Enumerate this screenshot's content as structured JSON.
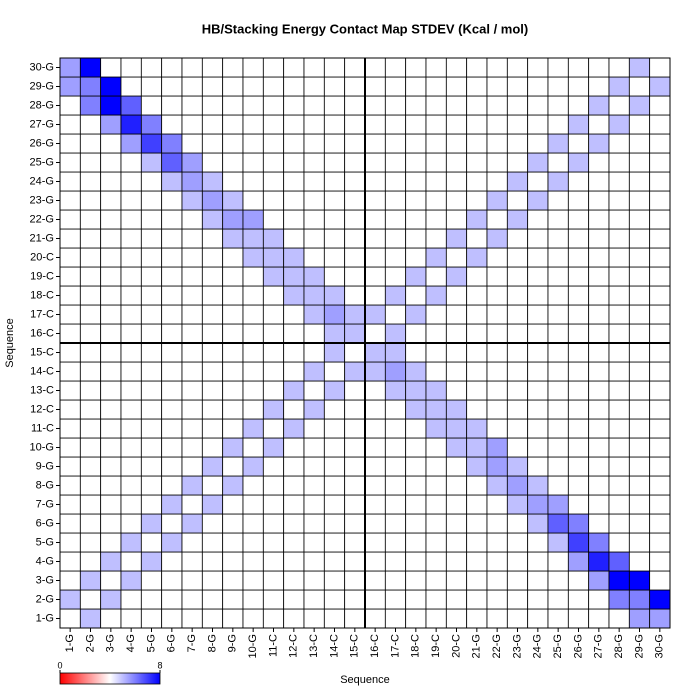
{
  "chart_data": {
    "type": "heatmap",
    "title": "HB/Stacking Energy Contact Map STDEV (Kcal / mol)",
    "x_label": "Sequence",
    "y_label": "Sequence",
    "categories": [
      "1-G",
      "2-G",
      "3-G",
      "4-G",
      "5-G",
      "6-G",
      "7-G",
      "8-G",
      "9-G",
      "10-G",
      "11-C",
      "12-C",
      "13-C",
      "14-C",
      "15-C",
      "16-C",
      "17-C",
      "18-C",
      "19-C",
      "20-C",
      "21-G",
      "22-G",
      "23-G",
      "24-G",
      "25-G",
      "26-G",
      "27-G",
      "28-G",
      "29-G",
      "30-G"
    ],
    "values": [
      [
        4,
        5,
        4,
        4,
        4,
        4,
        4,
        4,
        4,
        4,
        4,
        4,
        4,
        4,
        4,
        4,
        4,
        4,
        4,
        4,
        4,
        4,
        4,
        4,
        4,
        4,
        4,
        4,
        5.5,
        5.5
      ],
      [
        5,
        4,
        5,
        4,
        4,
        4,
        4,
        4,
        4,
        4,
        4,
        4,
        4,
        4,
        4,
        4,
        4,
        4,
        4,
        4,
        4,
        4,
        4,
        4,
        4,
        4,
        4,
        6,
        6,
        8
      ],
      [
        4,
        5,
        4,
        5,
        4,
        4,
        4,
        4,
        4,
        4,
        4,
        4,
        4,
        4,
        4,
        4,
        4,
        4,
        4,
        4,
        4,
        4,
        4,
        4,
        4,
        4,
        5.5,
        8,
        8,
        4
      ],
      [
        4,
        4,
        5,
        4,
        5,
        4,
        4,
        4,
        4,
        4,
        4,
        4,
        4,
        4,
        4,
        4,
        4,
        4,
        4,
        4,
        4,
        4,
        4,
        4,
        4,
        5.5,
        7.5,
        6.5,
        4,
        4
      ],
      [
        4,
        4,
        4,
        5,
        4,
        5,
        4,
        4,
        4,
        4,
        4,
        4,
        4,
        4,
        4,
        4,
        4,
        4,
        4,
        4,
        4,
        4,
        4,
        4,
        5,
        7,
        6,
        4,
        4,
        4
      ],
      [
        4,
        4,
        4,
        4,
        5,
        4,
        5,
        4,
        4,
        4,
        4,
        4,
        4,
        4,
        4,
        4,
        4,
        4,
        4,
        4,
        4,
        4,
        4,
        5,
        6.5,
        6,
        4,
        4,
        4,
        4
      ],
      [
        4,
        4,
        4,
        4,
        4,
        5,
        4,
        5,
        4,
        4,
        4,
        4,
        4,
        4,
        4,
        4,
        4,
        4,
        4,
        4,
        4,
        4,
        5,
        5.5,
        5.5,
        4,
        4,
        4,
        4,
        4
      ],
      [
        4,
        4,
        4,
        4,
        4,
        4,
        5,
        4,
        5,
        4,
        4,
        4,
        4,
        4,
        4,
        4,
        4,
        4,
        4,
        4,
        4,
        5,
        5.5,
        5,
        4,
        4,
        4,
        4,
        4,
        4
      ],
      [
        4,
        4,
        4,
        4,
        4,
        4,
        4,
        5,
        4,
        5,
        4,
        4,
        4,
        4,
        4,
        4,
        4,
        4,
        4,
        4,
        5,
        5.5,
        5,
        4,
        4,
        4,
        4,
        4,
        4,
        4
      ],
      [
        4,
        4,
        4,
        4,
        4,
        4,
        4,
        4,
        5,
        4,
        5,
        4,
        4,
        4,
        4,
        4,
        4,
        4,
        4,
        5,
        5,
        5.5,
        4,
        4,
        4,
        4,
        4,
        4,
        4,
        4
      ],
      [
        4,
        4,
        4,
        4,
        4,
        4,
        4,
        4,
        4,
        5,
        4,
        5,
        4,
        4,
        4,
        4,
        4,
        4,
        5,
        5,
        5,
        4,
        4,
        4,
        4,
        4,
        4,
        4,
        4,
        4
      ],
      [
        4,
        4,
        4,
        4,
        4,
        4,
        4,
        4,
        4,
        4,
        5,
        4,
        5,
        4,
        4,
        4,
        4,
        5,
        5,
        5,
        4,
        4,
        4,
        4,
        4,
        4,
        4,
        4,
        4,
        4
      ],
      [
        4,
        4,
        4,
        4,
        4,
        4,
        4,
        4,
        4,
        4,
        4,
        5,
        4,
        5,
        4,
        4,
        5,
        5,
        5,
        4,
        4,
        4,
        4,
        4,
        4,
        4,
        4,
        4,
        4,
        4
      ],
      [
        4,
        4,
        4,
        4,
        4,
        4,
        4,
        4,
        4,
        4,
        4,
        4,
        5,
        4,
        5,
        5,
        5.5,
        5,
        4,
        4,
        4,
        4,
        4,
        4,
        4,
        4,
        4,
        4,
        4,
        4
      ],
      [
        4,
        4,
        4,
        4,
        4,
        4,
        4,
        4,
        4,
        4,
        4,
        4,
        4,
        5,
        4,
        5,
        5,
        4,
        4,
        4,
        4,
        4,
        4,
        4,
        4,
        4,
        4,
        4,
        4,
        4
      ],
      [
        4,
        4,
        4,
        4,
        4,
        4,
        4,
        4,
        4,
        4,
        4,
        4,
        4,
        5,
        5,
        4,
        5,
        4,
        4,
        4,
        4,
        4,
        4,
        4,
        4,
        4,
        4,
        4,
        4,
        4
      ],
      [
        4,
        4,
        4,
        4,
        4,
        4,
        4,
        4,
        4,
        4,
        4,
        4,
        5,
        5.5,
        5,
        5,
        4,
        5,
        4,
        4,
        4,
        4,
        4,
        4,
        4,
        4,
        4,
        4,
        4,
        4
      ],
      [
        4,
        4,
        4,
        4,
        4,
        4,
        4,
        4,
        4,
        4,
        4,
        5,
        5,
        5,
        4,
        4,
        5,
        4,
        5,
        4,
        4,
        4,
        4,
        4,
        4,
        4,
        4,
        4,
        4,
        4
      ],
      [
        4,
        4,
        4,
        4,
        4,
        4,
        4,
        4,
        4,
        4,
        5,
        5,
        5,
        4,
        4,
        4,
        4,
        5,
        4,
        5,
        4,
        4,
        4,
        4,
        4,
        4,
        4,
        4,
        4,
        4
      ],
      [
        4,
        4,
        4,
        4,
        4,
        4,
        4,
        4,
        4,
        5,
        5,
        5,
        4,
        4,
        4,
        4,
        4,
        4,
        5,
        4,
        5,
        4,
        4,
        4,
        4,
        4,
        4,
        4,
        4,
        4
      ],
      [
        4,
        4,
        4,
        4,
        4,
        4,
        4,
        4,
        5,
        5,
        5,
        4,
        4,
        4,
        4,
        4,
        4,
        4,
        4,
        5,
        4,
        5,
        4,
        4,
        4,
        4,
        4,
        4,
        4,
        4
      ],
      [
        4,
        4,
        4,
        4,
        4,
        4,
        4,
        5,
        5.5,
        5.5,
        4,
        4,
        4,
        4,
        4,
        4,
        4,
        4,
        4,
        4,
        5,
        4,
        5,
        4,
        4,
        4,
        4,
        4,
        4,
        4
      ],
      [
        4,
        4,
        4,
        4,
        4,
        4,
        5,
        5.5,
        5,
        4,
        4,
        4,
        4,
        4,
        4,
        4,
        4,
        4,
        4,
        4,
        4,
        5,
        4,
        5,
        4,
        4,
        4,
        4,
        4,
        4
      ],
      [
        4,
        4,
        4,
        4,
        4,
        5,
        5.5,
        5,
        4,
        4,
        4,
        4,
        4,
        4,
        4,
        4,
        4,
        4,
        4,
        4,
        4,
        4,
        5,
        4,
        5,
        4,
        4,
        4,
        4,
        4
      ],
      [
        4,
        4,
        4,
        4,
        5,
        6.5,
        5.5,
        4,
        4,
        4,
        4,
        4,
        4,
        4,
        4,
        4,
        4,
        4,
        4,
        4,
        4,
        4,
        4,
        5,
        4,
        5,
        4,
        4,
        4,
        4
      ],
      [
        4,
        4,
        4,
        5.5,
        7,
        6,
        4,
        4,
        4,
        4,
        4,
        4,
        4,
        4,
        4,
        4,
        4,
        4,
        4,
        4,
        4,
        4,
        4,
        4,
        5,
        4,
        5,
        4,
        4,
        4
      ],
      [
        4,
        4,
        5.5,
        7.5,
        6,
        4,
        4,
        4,
        4,
        4,
        4,
        4,
        4,
        4,
        4,
        4,
        4,
        4,
        4,
        4,
        4,
        4,
        4,
        4,
        4,
        5,
        4,
        5,
        4,
        4
      ],
      [
        4,
        6,
        8,
        6.5,
        4,
        4,
        4,
        4,
        4,
        4,
        4,
        4,
        4,
        4,
        4,
        4,
        4,
        4,
        4,
        4,
        4,
        4,
        4,
        4,
        4,
        4,
        5,
        4,
        5,
        4
      ],
      [
        5.5,
        6,
        8,
        4,
        4,
        4,
        4,
        4,
        4,
        4,
        4,
        4,
        4,
        4,
        4,
        4,
        4,
        4,
        4,
        4,
        4,
        4,
        4,
        4,
        4,
        4,
        4,
        5,
        4,
        5
      ],
      [
        5.5,
        8,
        4,
        4,
        4,
        4,
        4,
        4,
        4,
        4,
        4,
        4,
        4,
        4,
        4,
        4,
        4,
        4,
        4,
        4,
        4,
        4,
        4,
        4,
        4,
        4,
        4,
        4,
        5,
        4
      ]
    ],
    "zlim": [
      0,
      8
    ],
    "colorbar_ticks": [
      0,
      8
    ],
    "colors": [
      "#ff0000",
      "#ffffff",
      "#0000ff"
    ]
  }
}
